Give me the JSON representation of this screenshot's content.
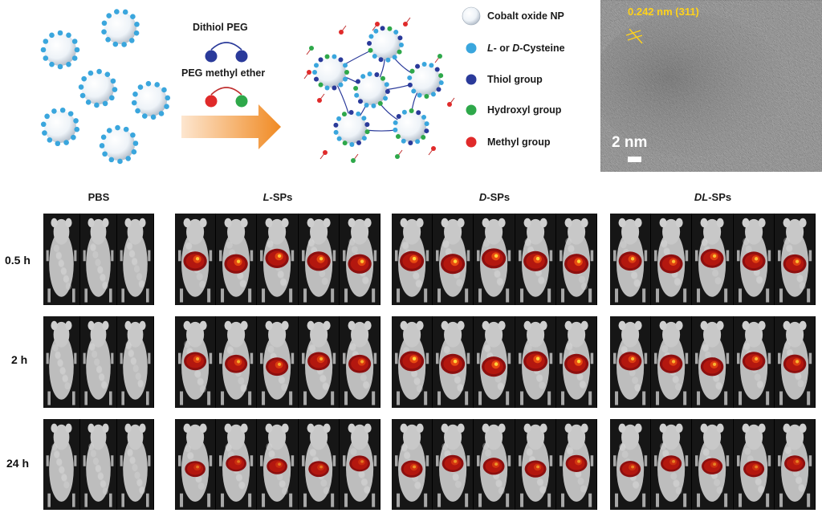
{
  "schematic": {
    "reagent_top": "Dithiol PEG",
    "reagent_bottom": "PEG methyl ether",
    "legend": [
      {
        "label": "Cobalt oxide NP",
        "italic_parts": [],
        "color": "#e8eef5"
      },
      {
        "label_plain_pre": "",
        "label_it1": "L",
        "label_mid": "- or ",
        "label_it2": "D",
        "label_post": "-Cysteine",
        "color": "#3aa6dd"
      },
      {
        "label": "Thiol group",
        "color": "#2a3a9a"
      },
      {
        "label": "Hydroxyl group",
        "color": "#2ea84a"
      },
      {
        "label": "Methyl group",
        "color": "#e02a2a"
      }
    ]
  },
  "tem": {
    "lattice_label": "0.242 nm (311)",
    "scale_label": "2 nm"
  },
  "imaging": {
    "groups": [
      {
        "name_it": "",
        "name_rest": "PBS",
        "count": 3
      },
      {
        "name_it": "L",
        "name_rest": "-SPs",
        "count": 5
      },
      {
        "name_it": "D",
        "name_rest": "-SPs",
        "count": 5
      },
      {
        "name_it": "DL",
        "name_rest": "-SPs",
        "count": 5
      }
    ],
    "timepoints": [
      "0.5 h",
      "2 h",
      "24 h"
    ]
  }
}
